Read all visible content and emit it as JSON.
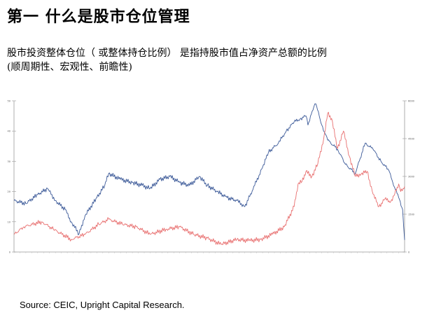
{
  "header": {
    "title": "第一 什么是股市仓位管理",
    "subtitle_line1": "股市投资整体仓位（ 或整体持仓比例） 是指持股市值占净资产总额的比例",
    "subtitle_line2": "(顺周期性、宏观性、前瞻性)"
  },
  "footer": {
    "source": "Source: CEIC, Upright Capital Research."
  },
  "chart_data": {
    "type": "line",
    "left_axis": {
      "ticks": [
        "50",
        "40",
        "30",
        "20",
        "10",
        "0"
      ],
      "ylim": [
        0,
        50
      ]
    },
    "right_axis": {
      "ticks": [
        "6000",
        "4500",
        "3000",
        "1500",
        "0"
      ],
      "ylim": [
        0,
        6000
      ]
    },
    "x_start": "2003-01",
    "x_end": "2019-07",
    "series": [
      {
        "axis": "left",
        "color": "#3b5998",
        "points": [
          [
            "2003-01",
            17
          ],
          [
            "2003-07",
            16
          ],
          [
            "2004-01",
            19
          ],
          [
            "2004-06",
            21
          ],
          [
            "2004-10",
            17
          ],
          [
            "2005-03",
            14
          ],
          [
            "2005-06",
            10
          ],
          [
            "2005-10",
            6
          ],
          [
            "2006-01",
            12
          ],
          [
            "2006-07",
            18
          ],
          [
            "2006-11",
            22
          ],
          [
            "2007-01",
            26
          ],
          [
            "2007-07",
            24
          ],
          [
            "2008-01",
            23
          ],
          [
            "2008-06",
            22
          ],
          [
            "2008-10",
            21
          ],
          [
            "2009-03",
            24
          ],
          [
            "2009-08",
            25
          ],
          [
            "2010-01",
            23
          ],
          [
            "2010-06",
            22
          ],
          [
            "2010-11",
            25
          ],
          [
            "2011-03",
            22
          ],
          [
            "2011-08",
            20
          ],
          [
            "2012-01",
            18
          ],
          [
            "2012-06",
            17
          ],
          [
            "2012-10",
            15
          ],
          [
            "2013-03",
            22
          ],
          [
            "2013-07",
            28
          ],
          [
            "2013-10",
            33
          ],
          [
            "2014-03",
            36
          ],
          [
            "2014-07",
            40
          ],
          [
            "2014-11",
            43
          ],
          [
            "2015-02",
            44
          ],
          [
            "2015-05",
            45
          ],
          [
            "2015-06",
            42
          ],
          [
            "2015-09",
            48
          ],
          [
            "2015-10",
            49
          ],
          [
            "2016-01",
            42
          ],
          [
            "2016-04",
            37
          ],
          [
            "2016-09",
            34
          ],
          [
            "2017-01",
            29
          ],
          [
            "2017-06",
            26
          ],
          [
            "2017-11",
            36
          ],
          [
            "2018-03",
            34
          ],
          [
            "2018-07",
            30
          ],
          [
            "2018-11",
            27
          ],
          [
            "2019-01",
            23
          ],
          [
            "2019-04",
            18
          ],
          [
            "2019-06",
            14
          ],
          [
            "2019-07",
            4
          ]
        ]
      },
      {
        "axis": "right",
        "color": "#e87070",
        "points": [
          [
            "2003-01",
            700
          ],
          [
            "2003-06",
            1000
          ],
          [
            "2004-03",
            1200
          ],
          [
            "2004-09",
            900
          ],
          [
            "2005-06",
            500
          ],
          [
            "2006-01",
            700
          ],
          [
            "2006-08",
            1100
          ],
          [
            "2007-01",
            1300
          ],
          [
            "2007-08",
            1100
          ],
          [
            "2008-03",
            1000
          ],
          [
            "2008-10",
            700
          ],
          [
            "2009-06",
            900
          ],
          [
            "2010-01",
            1000
          ],
          [
            "2010-08",
            700
          ],
          [
            "2011-03",
            550
          ],
          [
            "2011-10",
            300
          ],
          [
            "2012-06",
            500
          ],
          [
            "2012-12",
            450
          ],
          [
            "2013-06",
            500
          ],
          [
            "2013-12",
            700
          ],
          [
            "2014-06",
            1000
          ],
          [
            "2014-11",
            1800
          ],
          [
            "2015-01",
            2700
          ],
          [
            "2015-03",
            2800
          ],
          [
            "2015-05",
            3200
          ],
          [
            "2015-08",
            3000
          ],
          [
            "2015-11",
            3500
          ],
          [
            "2016-02",
            4500
          ],
          [
            "2016-04",
            5500
          ],
          [
            "2016-06",
            5300
          ],
          [
            "2016-09",
            4100
          ],
          [
            "2016-12",
            4800
          ],
          [
            "2017-03",
            3800
          ],
          [
            "2017-06",
            3000
          ],
          [
            "2017-09",
            3100
          ],
          [
            "2017-12",
            3200
          ],
          [
            "2018-03",
            2300
          ],
          [
            "2018-06",
            1800
          ],
          [
            "2018-09",
            2100
          ],
          [
            "2018-12",
            2000
          ],
          [
            "2019-02",
            2300
          ],
          [
            "2019-04",
            2700
          ],
          [
            "2019-05",
            2400
          ],
          [
            "2019-07",
            2600
          ]
        ]
      }
    ],
    "grid": false
  }
}
